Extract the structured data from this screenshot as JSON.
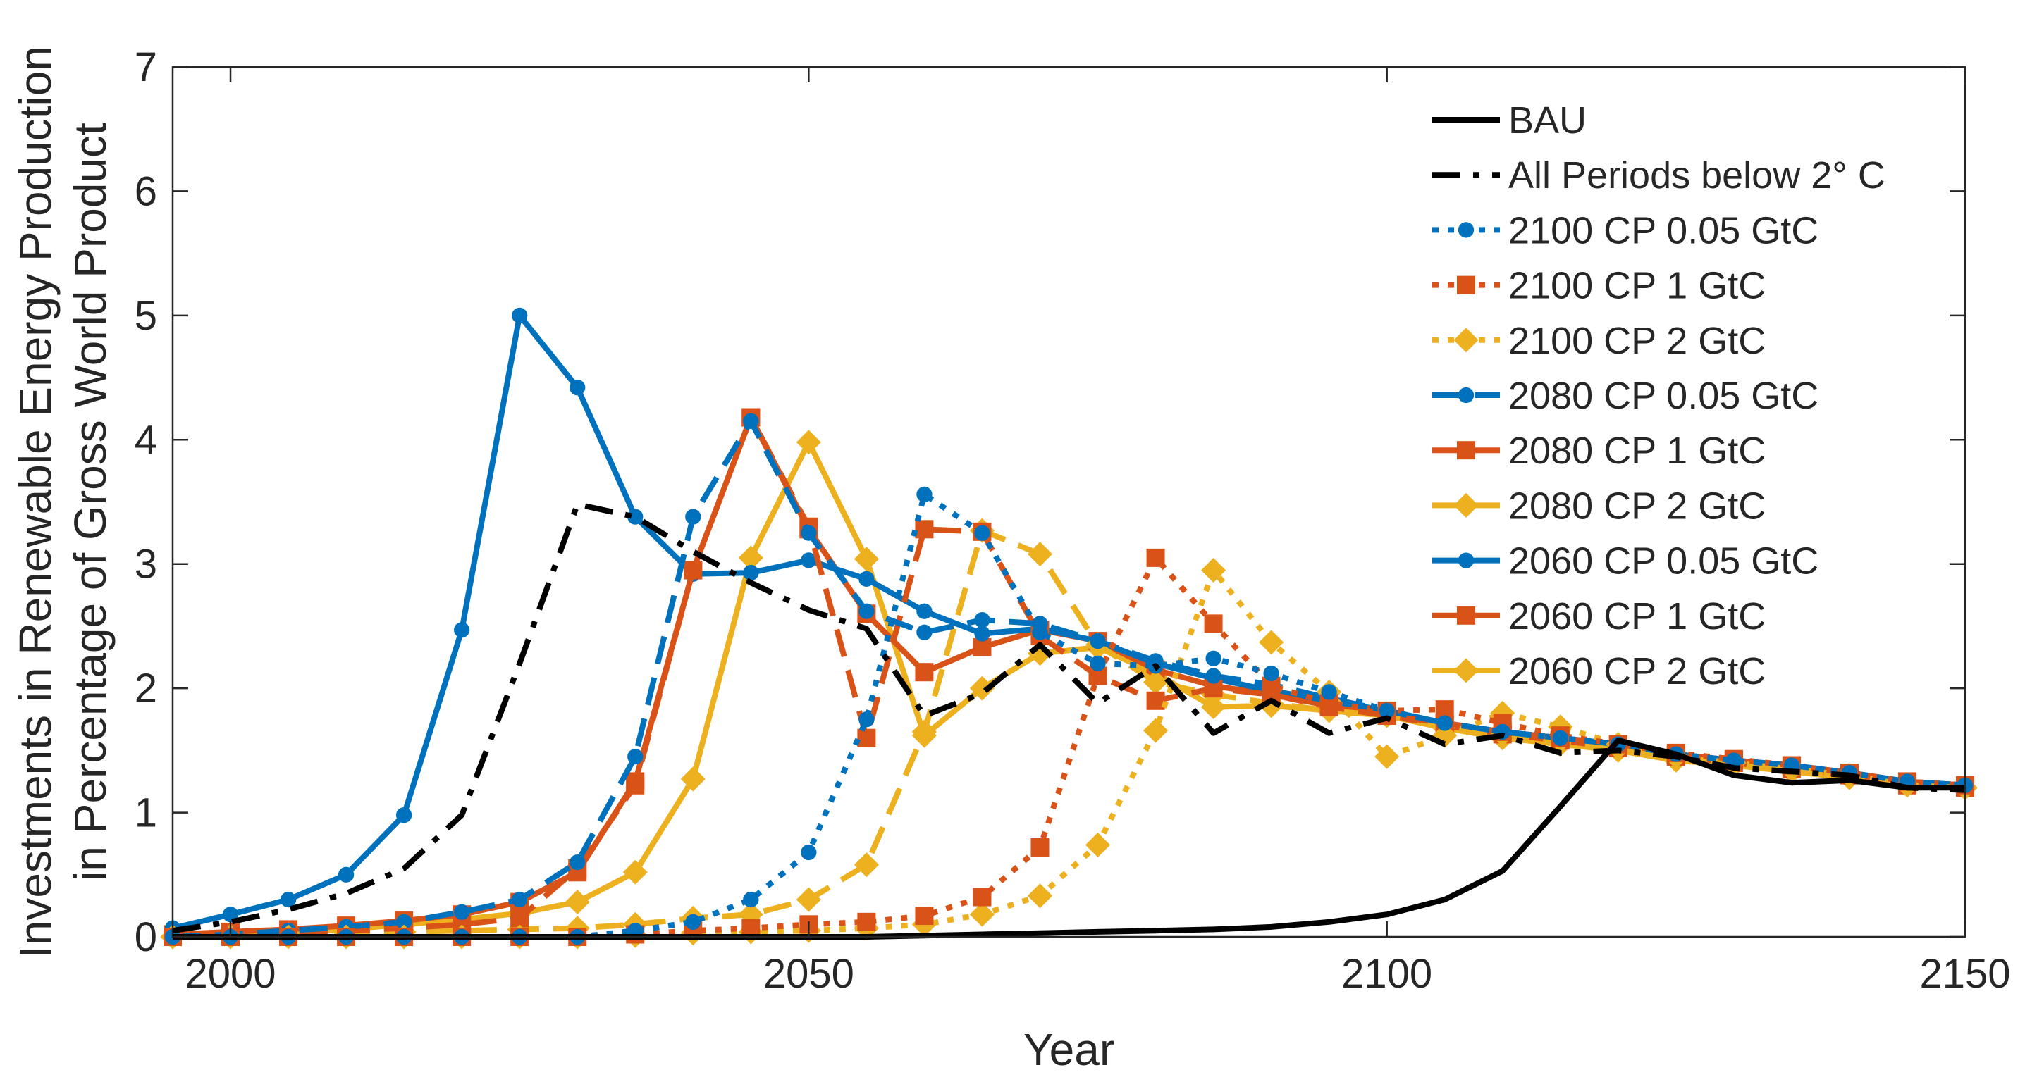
{
  "chart_data": {
    "type": "line",
    "title": "",
    "xlabel": "Year",
    "ylabel_lines": [
      "Investments in Renewable Energy Production",
      "in Percentage of Gross World Product"
    ],
    "xlim": [
      1995,
      2150
    ],
    "ylim": [
      0,
      7
    ],
    "xticks": [
      2000,
      2050,
      2100,
      2150
    ],
    "yticks": [
      0,
      1,
      2,
      3,
      4,
      5,
      6,
      7
    ],
    "grid": false,
    "legend_position": "top-right",
    "colors": {
      "black": "#000000",
      "blue": "#0072BD",
      "orange": "#D95319",
      "yellow": "#EDB120"
    },
    "x": [
      1995,
      2000,
      2005,
      2010,
      2015,
      2020,
      2025,
      2030,
      2035,
      2040,
      2045,
      2050,
      2055,
      2060,
      2065,
      2070,
      2075,
      2080,
      2085,
      2090,
      2095,
      2100,
      2105,
      2110,
      2115,
      2120,
      2125,
      2130,
      2135,
      2140,
      2145,
      2150
    ],
    "series": [
      {
        "name": "BAU",
        "color": "black",
        "dash": "solid",
        "marker": "none",
        "values": [
          0,
          0,
          0,
          0,
          0,
          0,
          0,
          0,
          0,
          0,
          0,
          0,
          0,
          0.01,
          0.02,
          0.03,
          0.04,
          0.05,
          0.06,
          0.08,
          0.12,
          0.18,
          0.3,
          0.53,
          1.05,
          1.58,
          1.47,
          1.3,
          1.24,
          1.26,
          1.2,
          1.2
        ]
      },
      {
        "name": "All Periods below 2° C",
        "color": "black",
        "dash": "dashdot",
        "marker": "none",
        "values": [
          0.05,
          0.12,
          0.22,
          0.35,
          0.55,
          0.98,
          2.2,
          3.48,
          3.38,
          3.1,
          2.85,
          2.63,
          2.48,
          1.78,
          1.96,
          2.35,
          1.88,
          2.18,
          1.64,
          1.9,
          1.64,
          1.76,
          1.55,
          1.62,
          1.48,
          1.5,
          1.45,
          1.36,
          1.33,
          1.3,
          1.2,
          1.18
        ]
      },
      {
        "name": "2100 CP 0.05 GtC",
        "color": "blue",
        "dash": "dotted",
        "marker": "circle",
        "values": [
          0,
          0,
          0,
          0,
          0,
          0,
          0,
          0,
          0.05,
          0.12,
          0.3,
          0.68,
          1.75,
          3.56,
          3.25,
          2.45,
          2.2,
          2.18,
          2.24,
          2.12,
          1.97,
          1.82,
          1.72,
          1.65,
          1.6,
          1.55,
          1.47,
          1.42,
          1.38,
          1.32,
          1.25,
          1.22
        ]
      },
      {
        "name": "2100 CP 1 GtC",
        "color": "orange",
        "dash": "dotted",
        "marker": "square",
        "values": [
          0,
          0,
          0,
          0,
          0,
          0,
          0,
          0,
          0.02,
          0.05,
          0.07,
          0.1,
          0.12,
          0.17,
          0.32,
          0.72,
          2.1,
          3.05,
          2.52,
          2.02,
          1.88,
          1.82,
          1.83,
          1.72,
          1.62,
          1.55,
          1.48,
          1.43,
          1.38,
          1.32,
          1.25,
          1.22
        ]
      },
      {
        "name": "2100 CP 2 GtC",
        "color": "yellow",
        "dash": "dotted",
        "marker": "diamond",
        "values": [
          0,
          0,
          0,
          0,
          0,
          0,
          0,
          0,
          0.01,
          0.03,
          0.04,
          0.05,
          0.07,
          0.1,
          0.18,
          0.33,
          0.74,
          1.66,
          2.95,
          2.37,
          1.97,
          1.45,
          1.62,
          1.8,
          1.69,
          1.55,
          1.45,
          1.4,
          1.35,
          1.3,
          1.22,
          1.2
        ]
      },
      {
        "name": "2080 CP 0.05 GtC",
        "color": "blue",
        "dash": "dashed",
        "marker": "circle",
        "values": [
          0,
          0.02,
          0.05,
          0.08,
          0.12,
          0.2,
          0.3,
          0.6,
          1.45,
          3.38,
          4.15,
          3.25,
          2.62,
          2.45,
          2.55,
          2.52,
          2.38,
          2.22,
          2.1,
          2.03,
          1.92,
          1.82,
          1.72,
          1.65,
          1.6,
          1.55,
          1.47,
          1.42,
          1.38,
          1.32,
          1.25,
          1.22
        ]
      },
      {
        "name": "2080 CP 1 GtC",
        "color": "orange",
        "dash": "dashed",
        "marker": "square",
        "values": [
          0,
          0.02,
          0.03,
          0.05,
          0.07,
          0.1,
          0.15,
          0.55,
          1.22,
          2.95,
          4.18,
          3.3,
          1.6,
          3.28,
          3.26,
          2.42,
          2.1,
          1.9,
          2.0,
          1.95,
          1.85,
          1.78,
          1.72,
          1.65,
          1.6,
          1.55,
          1.47,
          1.42,
          1.38,
          1.32,
          1.25,
          1.22
        ]
      },
      {
        "name": "2080 CP 2 GtC",
        "color": "yellow",
        "dash": "dashed",
        "marker": "diamond",
        "values": [
          0,
          0.01,
          0.02,
          0.03,
          0.04,
          0.05,
          0.06,
          0.07,
          0.1,
          0.15,
          0.18,
          0.3,
          0.58,
          1.65,
          3.27,
          3.08,
          2.35,
          2.05,
          1.95,
          1.88,
          1.82,
          1.78,
          1.7,
          1.63,
          1.58,
          1.52,
          1.45,
          1.4,
          1.35,
          1.3,
          1.22,
          1.2
        ]
      },
      {
        "name": "2060 CP 0.05 GtC",
        "color": "blue",
        "dash": "solid",
        "marker": "circle",
        "values": [
          0.07,
          0.18,
          0.3,
          0.5,
          0.98,
          2.47,
          5.0,
          4.42,
          3.38,
          2.92,
          2.93,
          3.03,
          2.88,
          2.62,
          2.44,
          2.48,
          2.38,
          2.2,
          2.08,
          1.98,
          1.9,
          1.82,
          1.72,
          1.65,
          1.6,
          1.55,
          1.47,
          1.42,
          1.38,
          1.32,
          1.25,
          1.22
        ]
      },
      {
        "name": "2060 CP 1 GtC",
        "color": "orange",
        "dash": "solid",
        "marker": "square",
        "values": [
          0.02,
          0.04,
          0.06,
          0.09,
          0.13,
          0.18,
          0.28,
          0.52,
          1.25,
          2.95,
          4.18,
          3.28,
          2.6,
          2.13,
          2.33,
          2.47,
          2.38,
          2.15,
          2.02,
          1.95,
          1.86,
          1.78,
          1.7,
          1.63,
          1.58,
          1.52,
          1.45,
          1.4,
          1.35,
          1.3,
          1.22,
          1.2
        ]
      },
      {
        "name": "2060 CP 2 GtC",
        "color": "yellow",
        "dash": "solid",
        "marker": "diamond",
        "values": [
          0,
          0.01,
          0.03,
          0.06,
          0.1,
          0.14,
          0.19,
          0.28,
          0.52,
          1.27,
          3.05,
          3.98,
          3.04,
          1.62,
          2.0,
          2.28,
          2.33,
          2.12,
          1.85,
          1.86,
          1.82,
          1.78,
          1.68,
          1.6,
          1.55,
          1.5,
          1.42,
          1.38,
          1.33,
          1.28,
          1.22,
          1.2
        ]
      }
    ]
  }
}
